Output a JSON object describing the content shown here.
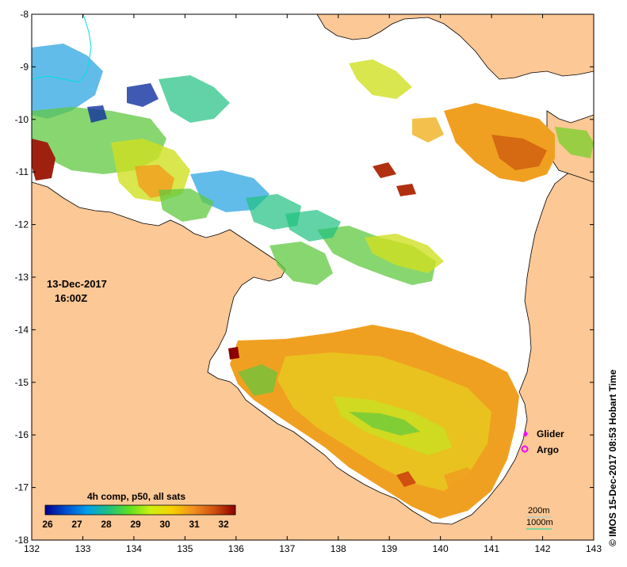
{
  "map": {
    "lon_ticks": [
      "132",
      "133",
      "134",
      "135",
      "136",
      "137",
      "138",
      "139",
      "140",
      "141",
      "142",
      "143"
    ],
    "lat_ticks": [
      "-8",
      "-9",
      "-10",
      "-11",
      "-12",
      "-13",
      "-14",
      "-15",
      "-16",
      "-17",
      "-18"
    ],
    "land_color": "#FCC896",
    "ocean_color": "#FFFFFF"
  },
  "annotation": {
    "date": "13-Dec-2017",
    "time": "16:00Z"
  },
  "side_label": "© IMOS 15-Dec-2017 08:53 Hobart Time",
  "colorbar": {
    "title": "4h comp, p50, all sats",
    "ticks": [
      "26",
      "27",
      "28",
      "29",
      "30",
      "31",
      "32"
    ],
    "colors": [
      "#00008C",
      "#0050D0",
      "#00A0E8",
      "#20C080",
      "#60E020",
      "#D0F010",
      "#F8D000",
      "#F09020",
      "#D05010",
      "#8C0000"
    ]
  },
  "legend": {
    "glider": "Glider",
    "argo": "Argo",
    "glider_color": "#FF00FF",
    "argo_color": "#FF00FF"
  },
  "depth_legend": {
    "d200": "200m",
    "d1000": "1000m"
  }
}
